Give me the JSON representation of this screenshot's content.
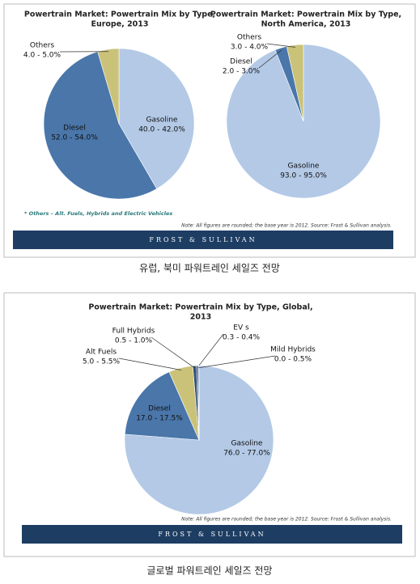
{
  "chart_data": [
    {
      "type": "pie",
      "title": [
        "Powertrain Market: Powertrain Mix by Type,",
        "Europe, 2013"
      ],
      "categories": [
        "Gasoline",
        "Diesel",
        "Others"
      ],
      "values": [
        41,
        53,
        4.5
      ],
      "value_labels": [
        "40.0 - 42.0%",
        "52.0 - 54.0%",
        "4.0 - 5.0%"
      ],
      "colors": [
        "#b3c9e6",
        "#4a76aa",
        "#cbc27a"
      ]
    },
    {
      "type": "pie",
      "title": [
        "Powertrain Market: Powertrain Mix by Type,",
        "North America, 2013"
      ],
      "categories": [
        "Gasoline",
        "Diesel",
        "Others"
      ],
      "values": [
        94,
        2.5,
        3.5
      ],
      "value_labels": [
        "93.0 - 95.0%",
        "2.0 - 3.0%",
        "3.0 - 4.0%"
      ],
      "colors": [
        "#b3c9e6",
        "#4a76aa",
        "#cbc27a"
      ]
    },
    {
      "type": "pie",
      "title": [
        "Powertrain Market: Powertrain Mix by Type, Global,",
        "2013"
      ],
      "categories": [
        "Gasoline",
        "Diesel",
        "Alt Fuels",
        "Full Hybrids",
        "EV s",
        "Mild Hybrids"
      ],
      "values": [
        76.5,
        17.25,
        5.25,
        0.75,
        0.35,
        0.25
      ],
      "value_labels": [
        "76.0 - 77.0%",
        "17.0 - 17.5%",
        "5.0 - 5.5%",
        "0.5 - 1.0%",
        "0.3 - 0.4%",
        "0.0 - 0.5%"
      ],
      "colors": [
        "#b3c9e6",
        "#4a76aa",
        "#cbc27a",
        "#2f4f78",
        "#1f3556",
        "#8aa7cc"
      ]
    }
  ],
  "footnote": "* Others – Alt. Fuels, Hybrids and Electric Vehicles",
  "notes": [
    "Note: All figures are rounded; the base year is 2012.  Source: Frost & Sullivan analysis.",
    "Note: All figures are rounded; the base year is 2012.  Source: Frost & Sullivan analysis."
  ],
  "brand": [
    "FROST & SULLIVAN",
    "FROST & SULLIVAN"
  ],
  "captions": [
    "유럽, 북미 파워트레인 세일즈 전망",
    "글로벌 파워트레인 세일즈 전망"
  ]
}
